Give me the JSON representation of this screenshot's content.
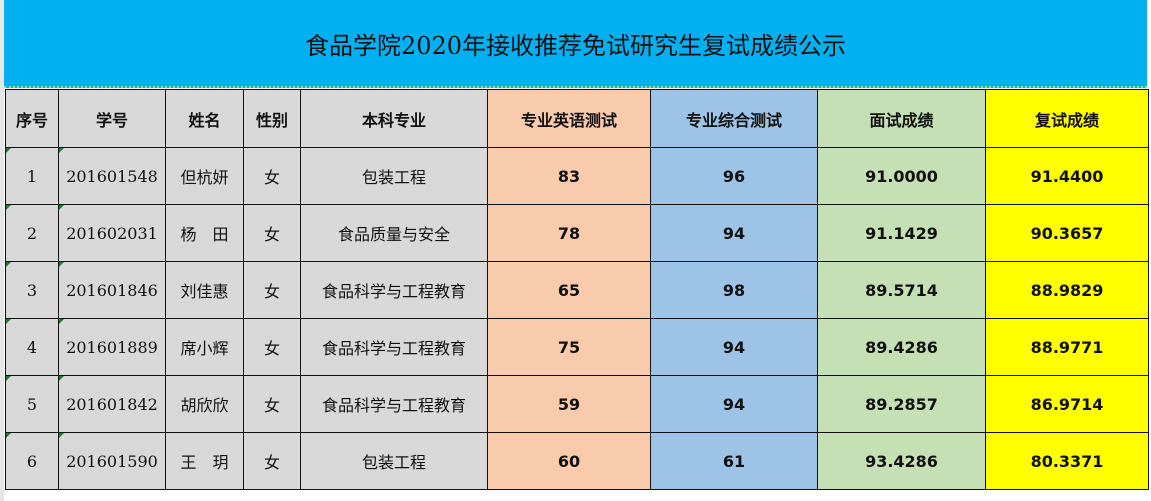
{
  "title": "食品学院2020年接收推荐免试研究生复试成绩公示",
  "headers": [
    "序号",
    "学号",
    "姓名",
    "性别",
    "本科专业",
    "专业英语测试",
    "专业综合测试",
    "面试成绩",
    "复试成绩"
  ],
  "rows": [
    [
      "1",
      "201601548",
      "但杭妍",
      "女",
      "包装工程",
      "83",
      "96",
      "91.0000",
      "91.4400"
    ],
    [
      "2",
      "201602031",
      "杨　田",
      "女",
      "食品质量与安全",
      "78",
      "94",
      "91.1429",
      "90.3657"
    ],
    [
      "3",
      "201601846",
      "刘佳惠",
      "女",
      "食品科学与工程教育",
      "65",
      "98",
      "89.5714",
      "88.9829"
    ],
    [
      "4",
      "201601889",
      "席小辉",
      "女",
      "食品科学与工程教育",
      "75",
      "94",
      "89.4286",
      "88.9771"
    ],
    [
      "5",
      "201601842",
      "胡欣欣",
      "女",
      "食品科学与工程教育",
      "59",
      "94",
      "89.2857",
      "86.9714"
    ],
    [
      "6",
      "201601590",
      "王　玥",
      "女",
      "包装工程",
      "60",
      "61",
      "93.4286",
      "80.3371"
    ]
  ],
  "colors": {
    "title_bg": "#00b0f0",
    "gray": "#d9d9d9",
    "english": "#f8cbad",
    "composite": "#9dc3e6",
    "interview": "#c5e0b4",
    "final": "#ffff00"
  }
}
